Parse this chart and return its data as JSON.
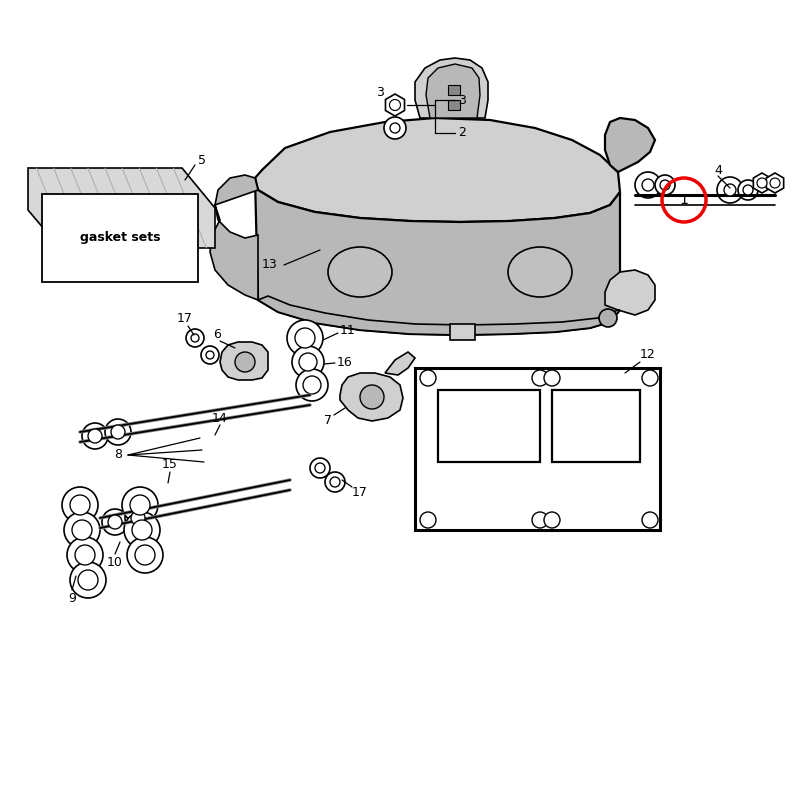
{
  "bg": "#ffffff",
  "red": "#ee0000",
  "black": "#000000",
  "light_gray": "#d0d0d0",
  "mid_gray": "#b8b8b8",
  "dark_gray": "#888888",
  "gasket_text": "gasket sets",
  "lw_main": 1.6,
  "lw_thin": 0.9,
  "lw_med": 1.2
}
